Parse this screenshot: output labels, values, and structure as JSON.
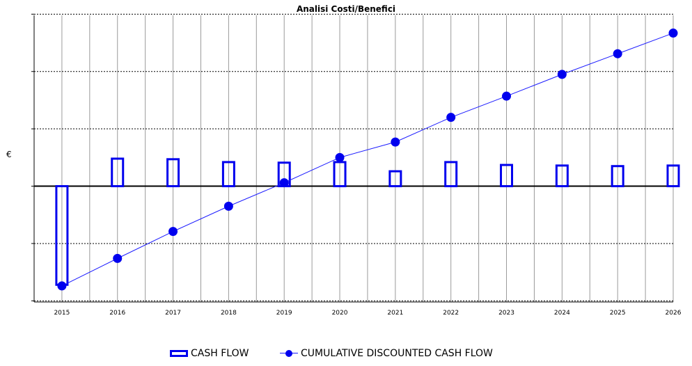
{
  "chart_data": {
    "type": "bar+line",
    "title": "Analisi  Costi/Benefici",
    "ylabel": "€",
    "xlabel": "",
    "categories": [
      "2015",
      "2016",
      "2017",
      "2018",
      "2019",
      "2020",
      "2021",
      "2022",
      "2023",
      "2024",
      "2025",
      "2026"
    ],
    "ylim": [
      -2.02,
      2.98
    ],
    "y_ticks": [
      -2,
      -1,
      0,
      1,
      2,
      3
    ],
    "y_tick_labels_shown": false,
    "grid": true,
    "legend_position": "bottom",
    "series": [
      {
        "name": "CASH FLOW",
        "type": "bar",
        "style": "hollow",
        "color": "#0000ee",
        "values": [
          -1.72,
          0.48,
          0.47,
          0.42,
          0.41,
          0.42,
          0.26,
          0.42,
          0.37,
          0.36,
          0.35,
          0.36
        ]
      },
      {
        "name": "CUMULATIVE DISCOUNTED CASH FLOW",
        "type": "line",
        "marker": "circle",
        "color": "#0000ee",
        "line_color": "#1a1aff",
        "values": [
          -1.74,
          -1.26,
          -0.79,
          -0.35,
          0.06,
          0.5,
          0.77,
          1.2,
          1.57,
          1.95,
          2.31,
          2.67
        ]
      }
    ]
  }
}
